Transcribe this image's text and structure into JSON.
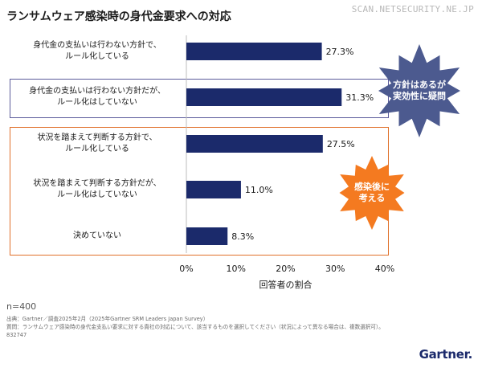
{
  "watermark": "SCAN.NETSECURITY.NE.JP",
  "chart_data": {
    "type": "bar",
    "orientation": "horizontal",
    "title": "ランサムウェア感染時の身代金要求への対応",
    "categories": [
      "身代金の支払いは行わない方針で、\nルール化している",
      "身代金の支払いは行わない方針だが、\nルール化はしていない",
      "状況を踏まえて判断する方針で、\nルール化している",
      "状況を踏まえて判断する方針だが、\nルール化はしていない",
      "決めていない"
    ],
    "values": [
      27.3,
      31.3,
      27.5,
      11.0,
      8.3
    ],
    "value_labels": [
      "27.3%",
      "31.3%",
      "27.5%",
      "11.0%",
      "8.3%"
    ],
    "xlim": [
      0,
      40
    ],
    "xticks": [
      "0%",
      "10%",
      "20%",
      "30%",
      "40%"
    ],
    "xlabel": "回答者の割合",
    "bar_color": "#1b2a6b",
    "grid": false
  },
  "callouts": {
    "blue": {
      "text": "方針はあるが\n実効性に疑問",
      "color": "#4c5a8f"
    },
    "orange": {
      "text": "感染後に\n考える",
      "color": "#f47a20"
    }
  },
  "footer": {
    "n": "n=400",
    "source": "出典：Gartner／調査2025年2月（2025年Gartner SRM Leaders Japan Survey）",
    "question": "質問：ランサムウェア感染時の身代金支払い要求に対する貴社の対応について、該当するものを選択してください（状況によって異なる場合は、複数選択可）。",
    "code": "832747"
  },
  "logo": "Gartner."
}
